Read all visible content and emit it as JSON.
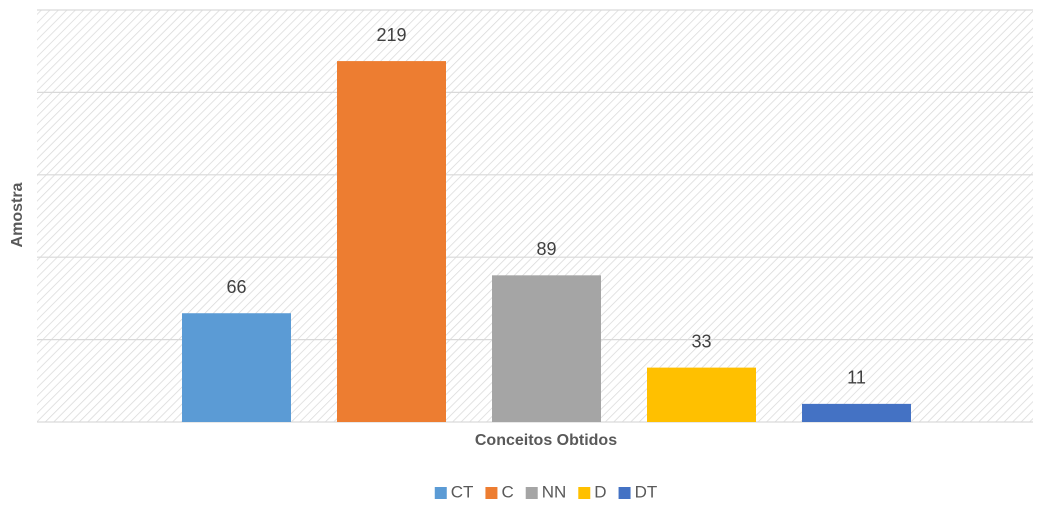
{
  "chart_data": {
    "type": "bar",
    "x_label": "Conceitos Obtidos",
    "y_label": "Amostra",
    "series": [
      {
        "name": "CT",
        "color": "#5b9bd5",
        "values": [
          66
        ]
      },
      {
        "name": "C",
        "color": "#ed7d31",
        "values": [
          219
        ]
      },
      {
        "name": "NN",
        "color": "#a5a5a5",
        "values": [
          89
        ]
      },
      {
        "name": "D",
        "color": "#ffc000",
        "values": [
          33
        ]
      },
      {
        "name": "DT",
        "color": "#4472c4",
        "values": [
          11
        ]
      }
    ],
    "ylim": [
      0,
      250
    ],
    "yticks": [
      0,
      50,
      100,
      150,
      200,
      250
    ],
    "grid": true,
    "legend": "bottom"
  }
}
